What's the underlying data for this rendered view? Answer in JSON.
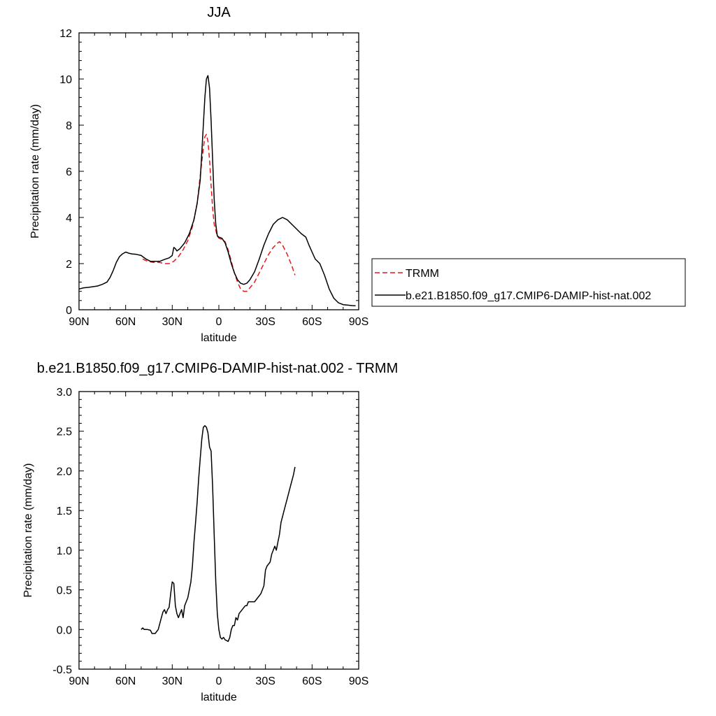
{
  "colors": {
    "model": "#000000",
    "trmm": "#e8191b",
    "axis": "#000000",
    "background": "#ffffff"
  },
  "legend": {
    "placement": "right of top panel",
    "entries": [
      {
        "label": "TRMM",
        "color": "#e8191b",
        "dash": "dashed"
      },
      {
        "label": "b.e21.B1850.f09_g17.CMIP6-DAMIP-hist-nat.002",
        "color": "#000000",
        "dash": "solid"
      }
    ]
  },
  "chart_data": [
    {
      "type": "line",
      "title": "JJA",
      "xlabel": "latitude",
      "ylabel": "Precipitation rate (mm/day)",
      "xlim": [
        90,
        -90
      ],
      "ylim": [
        0,
        12
      ],
      "xticks": [
        90,
        60,
        30,
        0,
        -30,
        -60,
        -90
      ],
      "xtick_labels": [
        "90N",
        "60N",
        "30N",
        "0",
        "30S",
        "60S",
        "90S"
      ],
      "yticks": [
        0,
        2,
        4,
        6,
        8,
        10,
        12
      ],
      "ytick_labels": [
        "0",
        "2",
        "4",
        "6",
        "8",
        "10",
        "12"
      ],
      "grid": false,
      "series": [
        {
          "name": "TRMM",
          "color": "#e8191b",
          "dash": "dashed",
          "points": [
            [
              49,
              2.2
            ],
            [
              46,
              2.1
            ],
            [
              42,
              2.05
            ],
            [
              38,
              2.05
            ],
            [
              35,
              2.0
            ],
            [
              32,
              2.0
            ],
            [
              29,
              2.1
            ],
            [
              26,
              2.3
            ],
            [
              23,
              2.6
            ],
            [
              20,
              3.0
            ],
            [
              17,
              3.6
            ],
            [
              14,
              4.6
            ],
            [
              12,
              5.8
            ],
            [
              10,
              7.0
            ],
            [
              9,
              7.5
            ],
            [
              8,
              7.6
            ],
            [
              7,
              7.3
            ],
            [
              6,
              6.5
            ],
            [
              5,
              5.4
            ],
            [
              4,
              4.4
            ],
            [
              3,
              3.7
            ],
            [
              1,
              3.2
            ],
            [
              0,
              3.1
            ],
            [
              -2,
              3.05
            ],
            [
              -4,
              2.95
            ],
            [
              -6,
              2.6
            ],
            [
              -8,
              2.1
            ],
            [
              -10,
              1.6
            ],
            [
              -12,
              1.2
            ],
            [
              -14,
              0.9
            ],
            [
              -16,
              0.8
            ],
            [
              -18,
              0.8
            ],
            [
              -20,
              0.95
            ],
            [
              -23,
              1.2
            ],
            [
              -26,
              1.6
            ],
            [
              -29,
              2.0
            ],
            [
              -32,
              2.4
            ],
            [
              -35,
              2.7
            ],
            [
              -38,
              2.9
            ],
            [
              -39,
              2.95
            ],
            [
              -41,
              2.8
            ],
            [
              -44,
              2.4
            ],
            [
              -47,
              1.9
            ],
            [
              -49,
              1.5
            ]
          ]
        },
        {
          "name": "b.e21.B1850.f09_g17.CMIP6-DAMIP-hist-nat.002",
          "color": "#000000",
          "dash": "solid",
          "points": [
            [
              90,
              0.9
            ],
            [
              87,
              0.95
            ],
            [
              84,
              0.97
            ],
            [
              81,
              1.0
            ],
            [
              78,
              1.03
            ],
            [
              75,
              1.1
            ],
            [
              72,
              1.2
            ],
            [
              70,
              1.4
            ],
            [
              68,
              1.7
            ],
            [
              66,
              2.05
            ],
            [
              64,
              2.3
            ],
            [
              62,
              2.42
            ],
            [
              60,
              2.5
            ],
            [
              58,
              2.45
            ],
            [
              56,
              2.42
            ],
            [
              53,
              2.4
            ],
            [
              50,
              2.35
            ],
            [
              47,
              2.2
            ],
            [
              44,
              2.1
            ],
            [
              41,
              2.1
            ],
            [
              38,
              2.1
            ],
            [
              35,
              2.18
            ],
            [
              32,
              2.25
            ],
            [
              30,
              2.35
            ],
            [
              29,
              2.7
            ],
            [
              28,
              2.65
            ],
            [
              27,
              2.55
            ],
            [
              25,
              2.65
            ],
            [
              22,
              2.9
            ],
            [
              19,
              3.3
            ],
            [
              16,
              3.9
            ],
            [
              14,
              4.6
            ],
            [
              12,
              5.6
            ],
            [
              11,
              6.8
            ],
            [
              10,
              8.0
            ],
            [
              9,
              9.2
            ],
            [
              8,
              10.0
            ],
            [
              7,
              10.15
            ],
            [
              6,
              9.6
            ],
            [
              5,
              8.2
            ],
            [
              4,
              6.5
            ],
            [
              3,
              4.8
            ],
            [
              2,
              3.7
            ],
            [
              1,
              3.2
            ],
            [
              0,
              3.15
            ],
            [
              -2,
              3.1
            ],
            [
              -4,
              2.9
            ],
            [
              -6,
              2.5
            ],
            [
              -8,
              2.0
            ],
            [
              -10,
              1.6
            ],
            [
              -12,
              1.3
            ],
            [
              -14,
              1.15
            ],
            [
              -16,
              1.1
            ],
            [
              -18,
              1.15
            ],
            [
              -20,
              1.3
            ],
            [
              -23,
              1.65
            ],
            [
              -26,
              2.2
            ],
            [
              -29,
              2.8
            ],
            [
              -32,
              3.3
            ],
            [
              -35,
              3.7
            ],
            [
              -38,
              3.9
            ],
            [
              -41,
              4.0
            ],
            [
              -44,
              3.9
            ],
            [
              -47,
              3.7
            ],
            [
              -50,
              3.5
            ],
            [
              -53,
              3.3
            ],
            [
              -56,
              3.15
            ],
            [
              -58,
              2.8
            ],
            [
              -60,
              2.5
            ],
            [
              -62,
              2.2
            ],
            [
              -65,
              2.0
            ],
            [
              -68,
              1.5
            ],
            [
              -71,
              0.9
            ],
            [
              -74,
              0.5
            ],
            [
              -77,
              0.3
            ],
            [
              -80,
              0.22
            ],
            [
              -83,
              0.2
            ],
            [
              -86,
              0.18
            ],
            [
              -88,
              0.17
            ]
          ]
        }
      ]
    },
    {
      "type": "line",
      "title": "b.e21.B1850.f09_g17.CMIP6-DAMIP-hist-nat.002 - TRMM",
      "xlabel": "latitude",
      "ylabel": "Precipitation rate (mm/day)",
      "xlim": [
        90,
        -90
      ],
      "ylim": [
        -0.5,
        3.0
      ],
      "xticks": [
        90,
        60,
        30,
        0,
        -30,
        -60,
        -90
      ],
      "xtick_labels": [
        "90N",
        "60N",
        "30N",
        "0",
        "30S",
        "60S",
        "90S"
      ],
      "yticks": [
        -0.5,
        0.0,
        0.5,
        1.0,
        1.5,
        2.0,
        2.5,
        3.0
      ],
      "ytick_labels": [
        "-0.5",
        "0.0",
        "0.5",
        "1.0",
        "1.5",
        "2.0",
        "2.5",
        "3.0"
      ],
      "grid": false,
      "series": [
        {
          "name": "b.e21.B1850.f09_g17.CMIP6-DAMIP-hist-nat.002 - TRMM",
          "color": "#000000",
          "dash": "solid",
          "points": [
            [
              50,
              0.0
            ],
            [
              49,
              0.02
            ],
            [
              48,
              0.0
            ],
            [
              46,
              0.0
            ],
            [
              44,
              -0.01
            ],
            [
              43,
              -0.05
            ],
            [
              41,
              -0.05
            ],
            [
              39,
              0.0
            ],
            [
              37,
              0.15
            ],
            [
              36,
              0.22
            ],
            [
              35,
              0.25
            ],
            [
              34,
              0.2
            ],
            [
              33,
              0.25
            ],
            [
              32,
              0.28
            ],
            [
              31,
              0.45
            ],
            [
              30,
              0.6
            ],
            [
              29,
              0.58
            ],
            [
              28,
              0.3
            ],
            [
              27,
              0.2
            ],
            [
              26,
              0.15
            ],
            [
              25,
              0.2
            ],
            [
              24,
              0.25
            ],
            [
              23,
              0.15
            ],
            [
              22,
              0.3
            ],
            [
              21,
              0.35
            ],
            [
              20,
              0.4
            ],
            [
              18,
              0.6
            ],
            [
              17,
              0.8
            ],
            [
              16,
              1.1
            ],
            [
              15,
              1.35
            ],
            [
              14,
              1.6
            ],
            [
              13,
              1.9
            ],
            [
              12,
              2.15
            ],
            [
              11,
              2.4
            ],
            [
              10,
              2.55
            ],
            [
              9,
              2.57
            ],
            [
              8,
              2.55
            ],
            [
              7,
              2.48
            ],
            [
              6,
              2.3
            ],
            [
              5,
              2.25
            ],
            [
              4,
              1.8
            ],
            [
              3,
              1.2
            ],
            [
              2,
              0.6
            ],
            [
              1,
              0.2
            ],
            [
              0,
              0.0
            ],
            [
              -1,
              -0.1
            ],
            [
              -2,
              -0.12
            ],
            [
              -3,
              -0.1
            ],
            [
              -4,
              -0.13
            ],
            [
              -6,
              -0.15
            ],
            [
              -7,
              -0.1
            ],
            [
              -8,
              0.0
            ],
            [
              -9,
              0.05
            ],
            [
              -10,
              0.05
            ],
            [
              -11,
              0.15
            ],
            [
              -12,
              0.12
            ],
            [
              -13,
              0.2
            ],
            [
              -15,
              0.25
            ],
            [
              -17,
              0.3
            ],
            [
              -18,
              0.3
            ],
            [
              -19,
              0.35
            ],
            [
              -21,
              0.35
            ],
            [
              -23,
              0.35
            ],
            [
              -25,
              0.4
            ],
            [
              -27,
              0.45
            ],
            [
              -28,
              0.5
            ],
            [
              -29,
              0.55
            ],
            [
              -30,
              0.75
            ],
            [
              -31,
              0.8
            ],
            [
              -33,
              0.85
            ],
            [
              -34,
              0.95
            ],
            [
              -35,
              1.0
            ],
            [
              -36,
              1.05
            ],
            [
              -37,
              1.0
            ],
            [
              -38,
              1.1
            ],
            [
              -39,
              1.2
            ],
            [
              -40,
              1.35
            ],
            [
              -42,
              1.5
            ],
            [
              -44,
              1.65
            ],
            [
              -46,
              1.8
            ],
            [
              -48,
              1.95
            ],
            [
              -49,
              2.05
            ]
          ]
        }
      ]
    }
  ]
}
